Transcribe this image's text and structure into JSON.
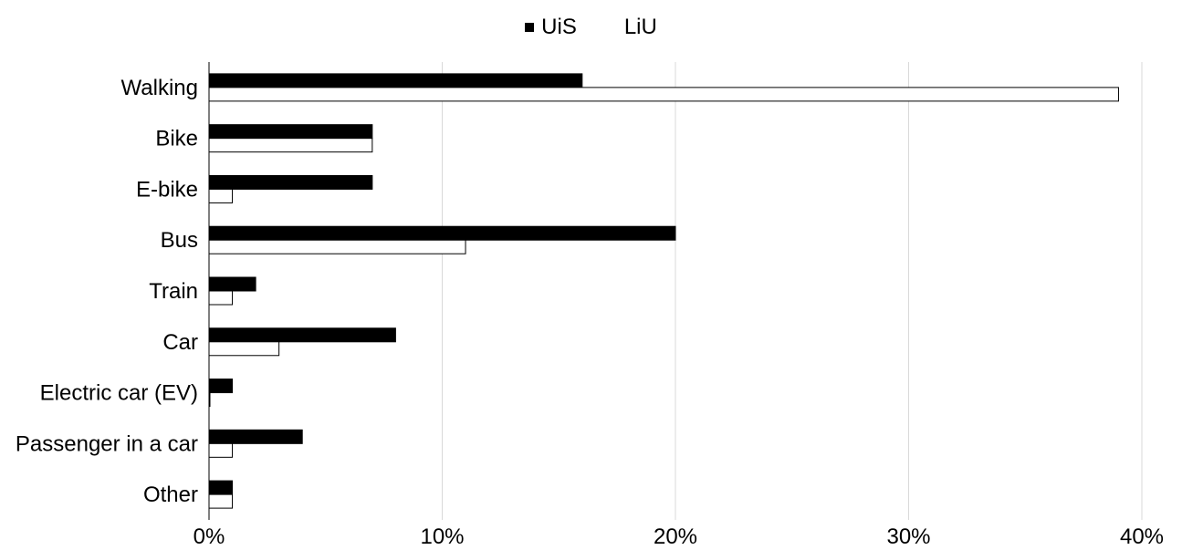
{
  "chart_data": {
    "type": "bar",
    "orientation": "horizontal",
    "categories": [
      "Walking",
      "Bike",
      "E-bike",
      "Bus",
      "Train",
      "Car",
      "Electric car (EV)",
      "Passenger in a car",
      "Other"
    ],
    "series": [
      {
        "name": "UiS",
        "values": [
          16,
          7,
          7,
          20,
          2,
          8,
          1,
          4,
          1
        ],
        "color": "#000000"
      },
      {
        "name": "LiU",
        "values": [
          39,
          7,
          1,
          11,
          1,
          3,
          0,
          1,
          1
        ],
        "color": "#ffffff"
      }
    ],
    "xlim": [
      0,
      40
    ],
    "xticks": [
      "0%",
      "10%",
      "20%",
      "30%",
      "40%"
    ],
    "grid": true,
    "legend_position": "top-center"
  }
}
